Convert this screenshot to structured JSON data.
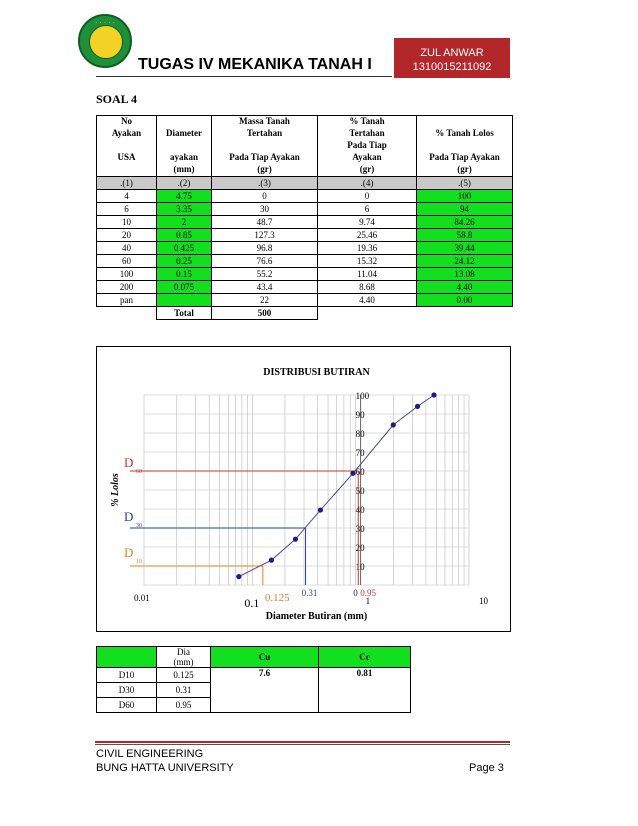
{
  "header": {
    "title": "TUGAS IV MEKANIKA TANAH I",
    "author_name": "ZUL ANWAR",
    "author_id": "1310015211092",
    "logo_dots": "· · · · ·"
  },
  "section_title": "SOAL 4",
  "sieve_table": {
    "headers": {
      "col1": [
        "No",
        "Ayakan",
        "",
        "USA"
      ],
      "col2": [
        "",
        "Diameter",
        "",
        "ayakan",
        "(mm)"
      ],
      "col3": [
        "Massa Tanah",
        "Tertahan",
        "",
        "Pada Tiap Ayakan",
        "(gr)"
      ],
      "col4": [
        "% Tanah",
        "Tertahan",
        "Pada Tiap",
        "Ayakan",
        "(gr)"
      ],
      "col5": [
        "",
        "% Tanah Lolos",
        "",
        "Pada Tiap Ayakan",
        "(gr)"
      ]
    },
    "index_row": [
      ".(1)",
      ".(2)",
      ".(3)",
      ".(4)",
      ".(5)"
    ],
    "rows": [
      [
        "4",
        "4.75",
        "0",
        "0",
        "100"
      ],
      [
        "6",
        "3.35",
        "30",
        "6",
        "94"
      ],
      [
        "10",
        "2",
        "48.7",
        "9.74",
        "84.26"
      ],
      [
        "20",
        "0.85",
        "127.3",
        "25.46",
        "58.8"
      ],
      [
        "40",
        "0.425",
        "96.8",
        "19.36",
        "39.44"
      ],
      [
        "60",
        "0.25",
        "76.6",
        "15.32",
        "24.12"
      ],
      [
        "100",
        "0.15",
        "55.2",
        "11.04",
        "13.08"
      ],
      [
        "200",
        "0.075",
        "43.4",
        "8.68",
        "4.40"
      ],
      [
        "pan",
        "",
        "22",
        "4.40",
        "0.00"
      ]
    ],
    "total_label": "Total",
    "total_value": "500"
  },
  "chart_data": {
    "type": "line",
    "title": "DISTRIBUSI BUTIRAN",
    "xlabel": "Diameter Butiran (mm)",
    "ylabel": "% Lolos",
    "x_scale": "log",
    "xlim": [
      0.01,
      10
    ],
    "ylim": [
      0,
      100
    ],
    "x_tick_labels": [
      "0.01",
      "0.1",
      "1",
      "10"
    ],
    "y_tick_labels": [
      "10",
      "20",
      "30",
      "40",
      "50",
      "60",
      "70",
      "80",
      "90",
      "100"
    ],
    "x": [
      0.075,
      0.15,
      0.25,
      0.425,
      0.85,
      2,
      3.35,
      4.75
    ],
    "y": [
      4.4,
      13.08,
      24.12,
      39.44,
      58.8,
      84.26,
      94,
      100
    ],
    "grid": true,
    "line_color": "#4a4a8c",
    "point_color": "#1a1a8c",
    "reference_lines": [
      {
        "label": "D",
        "sub": "60",
        "y": 60,
        "x": 0.95,
        "x_label": "0.95",
        "color": "#c0392b"
      },
      {
        "label": "D",
        "sub": "30",
        "y": 30,
        "x": 0.31,
        "x_label": "0.31",
        "color": "#2c3e9e"
      },
      {
        "label": "D",
        "sub": "10",
        "y": 10,
        "x": 0.125,
        "x_label": "0.125",
        "color": "#e67e22"
      }
    ],
    "extra_labels": {
      "d60_zero": "0"
    }
  },
  "summary_table": {
    "header_dia": [
      "Dia",
      "(mm)"
    ],
    "header_cu": "Cu",
    "header_cc": "Cc",
    "rows": [
      {
        "label": "D10",
        "value": "0.125"
      },
      {
        "label": "D30",
        "value": "0.31"
      },
      {
        "label": "D60",
        "value": "0.95"
      }
    ],
    "cu_value": "7.6",
    "cc_value": "0.81"
  },
  "footer": {
    "line1": "CIVIL ENGINEERING",
    "line2": "BUNG HATTA UNIVERSITY",
    "page": "Page 3"
  }
}
